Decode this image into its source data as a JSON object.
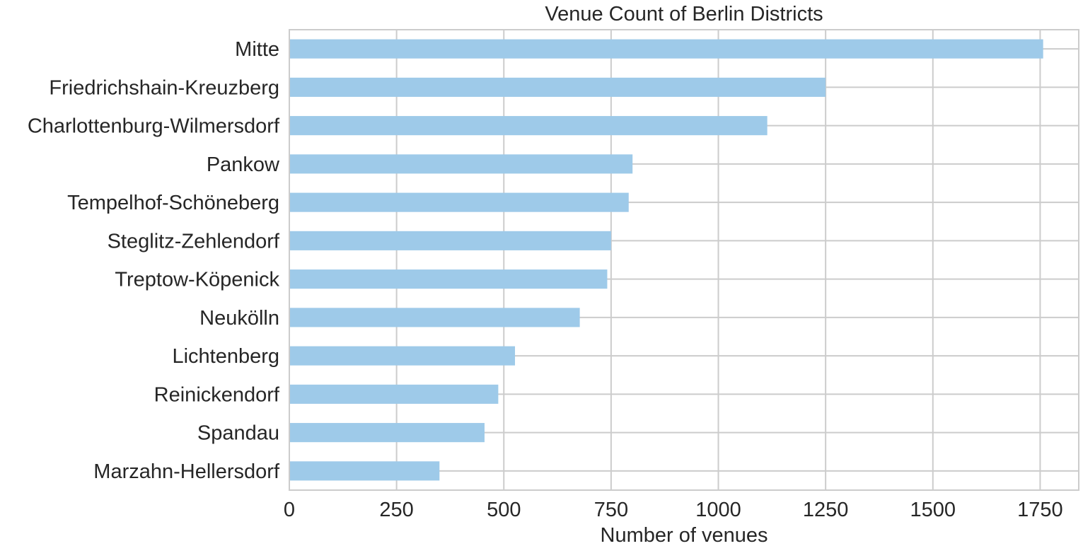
{
  "chart_data": {
    "type": "bar",
    "orientation": "horizontal",
    "title": "Venue Count of Berlin Districts",
    "xlabel": "Number of venues",
    "ylabel": "",
    "categories": [
      "Mitte",
      "Friedrichshain-Kreuzberg",
      "Charlottenburg-Wilmersdorf",
      "Pankow",
      "Tempelhof-Schöneberg",
      "Steglitz-Zehlendorf",
      "Treptow-Köpenick",
      "Neukölln",
      "Lichtenberg",
      "Reinickendorf",
      "Spandau",
      "Marzahn-Hellersdorf"
    ],
    "values": [
      1757,
      1250,
      1114,
      800,
      791,
      750,
      741,
      677,
      526,
      487,
      455,
      350
    ],
    "xlim": [
      0,
      1840
    ],
    "xticks": [
      0,
      250,
      500,
      750,
      1000,
      1250,
      1500,
      1750
    ],
    "grid": true,
    "legend": "none",
    "bar_color": "#9ecae9"
  }
}
